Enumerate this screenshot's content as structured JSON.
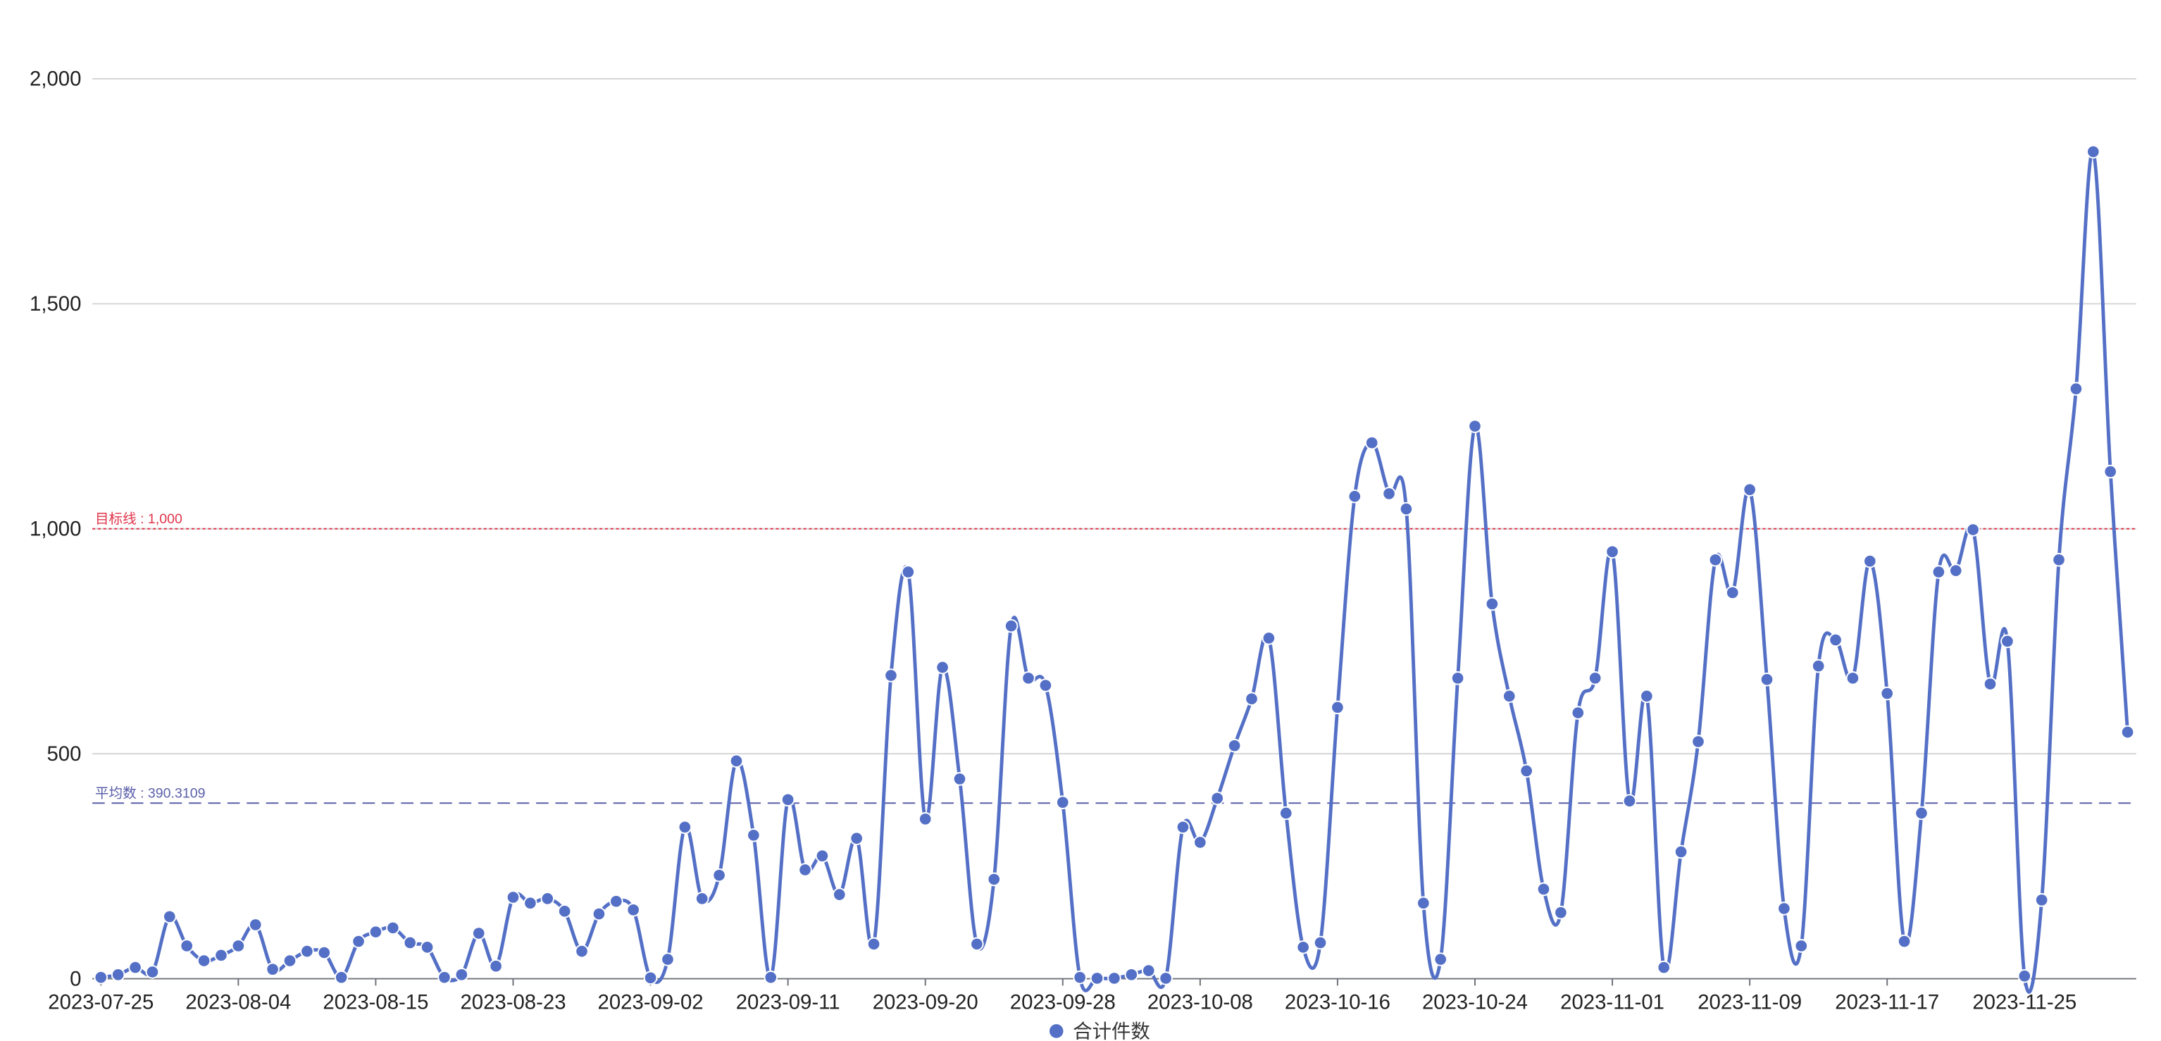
{
  "chart_data": {
    "type": "line",
    "categories": [
      "2023-07-25",
      null,
      null,
      null,
      null,
      null,
      null,
      null,
      "2023-08-04",
      null,
      null,
      null,
      null,
      null,
      null,
      null,
      "2023-08-15",
      null,
      null,
      null,
      null,
      null,
      null,
      null,
      "2023-08-23",
      null,
      null,
      null,
      null,
      null,
      null,
      null,
      "2023-09-02",
      null,
      null,
      null,
      null,
      null,
      null,
      null,
      "2023-09-11",
      null,
      null,
      null,
      null,
      null,
      null,
      null,
      "2023-09-20",
      null,
      null,
      null,
      null,
      null,
      null,
      null,
      "2023-09-28",
      null,
      null,
      null,
      null,
      null,
      null,
      null,
      "2023-10-08",
      null,
      null,
      null,
      null,
      null,
      null,
      null,
      "2023-10-16",
      null,
      null,
      null,
      null,
      null,
      null,
      null,
      "2023-10-24",
      null,
      null,
      null,
      null,
      null,
      null,
      null,
      "2023-11-01",
      null,
      null,
      null,
      null,
      null,
      null,
      null,
      "2023-11-09",
      null,
      null,
      null,
      null,
      null,
      null,
      null,
      "2023-11-17",
      null,
      null,
      null,
      null,
      null,
      null,
      null,
      "2023-11-25",
      null,
      null,
      null,
      null,
      null,
      null
    ],
    "series": [
      {
        "name": "合计件数",
        "color": "#5470c6",
        "values": [
          3,
          9,
          25,
          15,
          138,
          73,
          40,
          52,
          73,
          120,
          21,
          40,
          61,
          58,
          3,
          83,
          104,
          113,
          80,
          70,
          3,
          9,
          101,
          28,
          181,
          168,
          178,
          150,
          61,
          144,
          172,
          153,
          2,
          43,
          337,
          178,
          230,
          484,
          319,
          3,
          398,
          242,
          273,
          187,
          312,
          77,
          674,
          904,
          355,
          692,
          444,
          77,
          221,
          784,
          668,
          652,
          392,
          3,
          1,
          1,
          9,
          18,
          1,
          337,
          303,
          401,
          518,
          622,
          757,
          368,
          70,
          80,
          603,
          1072,
          1191,
          1078,
          1044,
          168,
          43,
          668,
          1228,
          833,
          628,
          462,
          199,
          147,
          591,
          668,
          949,
          395,
          628,
          25,
          282,
          527,
          931,
          858,
          1087,
          665,
          156,
          73,
          695,
          753,
          668,
          928,
          634,
          83,
          368,
          904,
          907,
          998,
          655,
          750,
          6,
          175,
          931,
          1311,
          1838,
          1127,
          548
        ]
      }
    ],
    "ylim": [
      0,
      2000
    ],
    "yticks": [
      0,
      500,
      {
        "value": 1000,
        "label": "1,000"
      },
      {
        "value": 1500,
        "label": "1,500"
      },
      {
        "value": 2000,
        "label": "2,000"
      }
    ],
    "grid": true,
    "smooth": true,
    "legend": "bottom",
    "mark_lines": [
      {
        "label": "目标线 : 1,000",
        "value": 1000,
        "color": "#e0344a",
        "style": "dotted"
      },
      {
        "label": "平均数 : 390.3109",
        "value": 390.3109,
        "color": "#5a5fa8",
        "style": "dashed"
      }
    ]
  }
}
